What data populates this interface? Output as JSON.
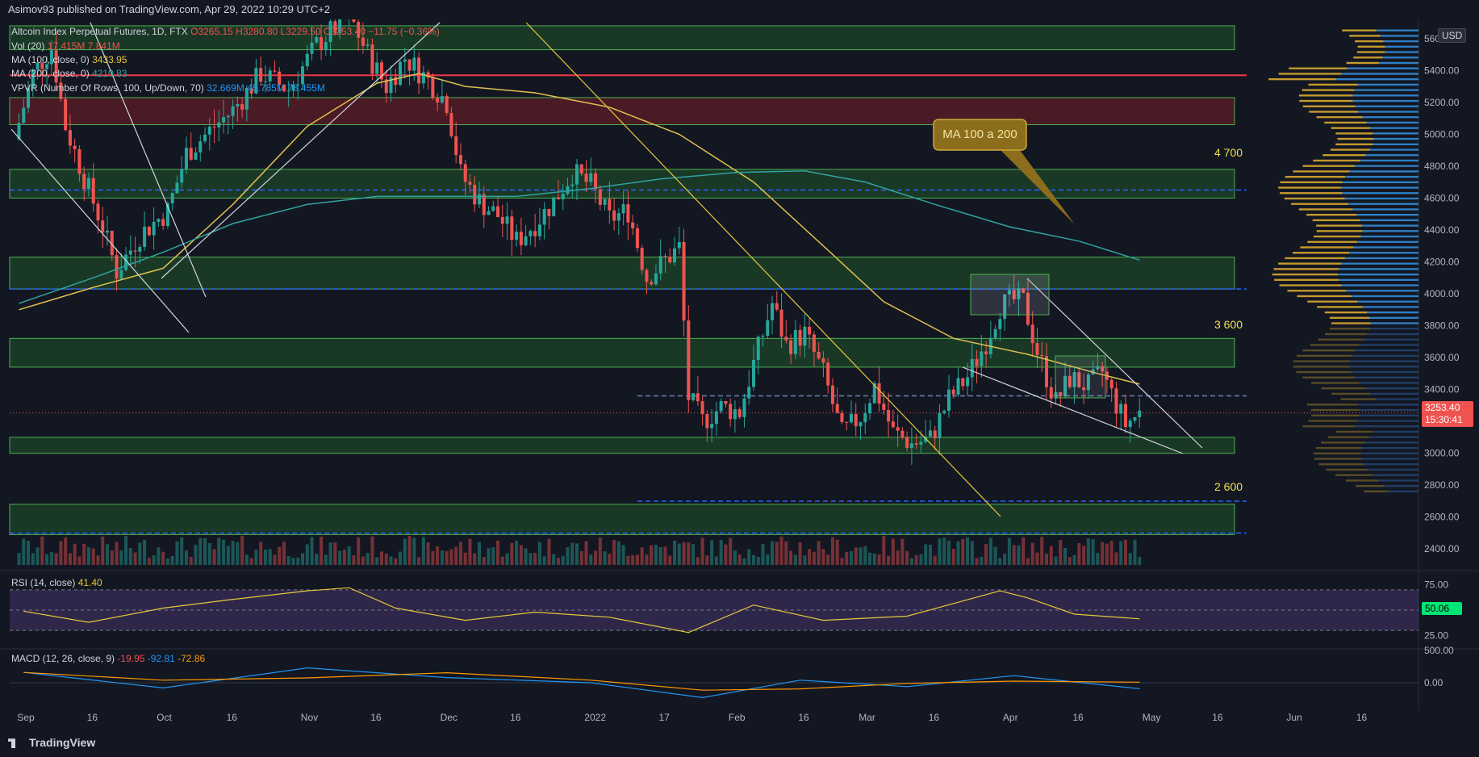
{
  "header": {
    "published": "Asimov93 published on TradingView.com, Apr 29, 2022 10:29 UTC+2"
  },
  "legend": {
    "symbol": "Altcoin Index Perpetual Futures, 1D, FTX",
    "ohlc": "O3265.15  H3280.80  L3229.50  C3253.40  −11.75 (−0.36%)",
    "vol_label": "Vol (20)",
    "vol_values": "17.415M  7.841M",
    "ma100_label": "MA (100, close, 0)",
    "ma100_value": "3433.95",
    "ma200_label": "MA (200, close, 0)",
    "ma200_value": "4210.83",
    "vpvr_label": "VPVR (Number Of Rows, 100, Up/Down, 70)",
    "vpvr_values": "32.669M  45.785M  78.455M",
    "rsi_label": "RSI (14, close)",
    "rsi_value": "41.40",
    "macd_label": "MACD (12, 26, close, 9)",
    "macd_values": [
      "-19.95",
      "-92.81",
      "-72.86"
    ]
  },
  "axis": {
    "currency": "USD",
    "price_ticks": [
      "5600.00",
      "5400.00",
      "5200.00",
      "5000.00",
      "4800.00",
      "4600.00",
      "4400.00",
      "4200.00",
      "4000.00",
      "3800.00",
      "3600.00",
      "3400.00",
      "3200.00",
      "3000.00",
      "2800.00",
      "2600.00",
      "2400.00"
    ],
    "rsi_ticks": [
      "75.00",
      "50.06",
      "25.00"
    ],
    "macd_ticks": [
      "500.00",
      "0.00"
    ],
    "last_price": "3253.40",
    "countdown": "15:30:41",
    "time_labels": [
      "Sep",
      "16",
      "Oct",
      "16",
      "Nov",
      "16",
      "Dec",
      "16",
      "2022",
      "17",
      "Feb",
      "16",
      "Mar",
      "16",
      "Apr",
      "16",
      "May",
      "16",
      "Jun",
      "16"
    ]
  },
  "annotations": {
    "callout": "MA 100 a 200",
    "level_4700": "4 700",
    "level_3600": "3 600",
    "level_2600": "2 600"
  },
  "footer": {
    "brand": "TradingView"
  },
  "colors": {
    "background": "#131722",
    "up": "#26a69a",
    "down": "#ef5350",
    "zone_fill": "#1f5e2a",
    "zone_stroke": "#4caf50",
    "ma100": "#e0c14e",
    "ma200": "#2fa3a0",
    "resistance": "#f23645",
    "dashed_level": "#2962ff",
    "rsi": "#e6c93a",
    "macd": "#2196f3",
    "signal": "#ff9800"
  },
  "chart_data": {
    "type": "candlestick",
    "title": "Altcoin Index Perpetual Futures, 1D, FTX",
    "ylim": [
      2300,
      5700
    ],
    "x_range": [
      "2021-08-29",
      "2022-06-28"
    ],
    "last_close": 3253.4,
    "horizontal_zones": [
      {
        "low": 5530,
        "high": 5680
      },
      {
        "low": 5060,
        "high": 5230,
        "color": "red"
      },
      {
        "low": 4600,
        "high": 4780,
        "label": "4 700"
      },
      {
        "low": 4030,
        "high": 4230
      },
      {
        "low": 3540,
        "high": 3720,
        "label": "3 600"
      },
      {
        "low": 3000,
        "high": 3100
      },
      {
        "low": 2490,
        "high": 2680,
        "label": "2 600"
      }
    ],
    "horizontal_lines": [
      {
        "price": 5370,
        "style": "solid",
        "color": "red"
      },
      {
        "price": 4650,
        "style": "dashed"
      },
      {
        "price": 4030,
        "style": "dashed"
      },
      {
        "price": 3360,
        "style": "dashed"
      },
      {
        "price": 2700,
        "style": "dashed"
      },
      {
        "price": 2500,
        "style": "dashed"
      }
    ],
    "ma100_points": [
      [
        "2021-08-31",
        3900
      ],
      [
        "2021-09-16",
        4040
      ],
      [
        "2021-10-01",
        4160
      ],
      [
        "2021-10-16",
        4560
      ],
      [
        "2021-11-01",
        5050
      ],
      [
        "2021-11-16",
        5320
      ],
      [
        "2021-11-25",
        5380
      ],
      [
        "2021-12-05",
        5300
      ],
      [
        "2021-12-20",
        5260
      ],
      [
        "2022-01-05",
        5170
      ],
      [
        "2022-01-20",
        5000
      ],
      [
        "2022-02-05",
        4700
      ],
      [
        "2022-02-20",
        4300
      ],
      [
        "2022-03-05",
        3950
      ],
      [
        "2022-03-20",
        3720
      ],
      [
        "2022-04-05",
        3620
      ],
      [
        "2022-04-20",
        3500
      ],
      [
        "2022-04-29",
        3434
      ]
    ],
    "ma200_points": [
      [
        "2021-08-31",
        3940
      ],
      [
        "2021-09-16",
        4100
      ],
      [
        "2021-10-01",
        4260
      ],
      [
        "2021-10-16",
        4440
      ],
      [
        "2021-11-01",
        4560
      ],
      [
        "2021-11-16",
        4610
      ],
      [
        "2021-12-01",
        4610
      ],
      [
        "2021-12-16",
        4610
      ],
      [
        "2022-01-01",
        4660
      ],
      [
        "2022-01-16",
        4720
      ],
      [
        "2022-02-01",
        4760
      ],
      [
        "2022-02-16",
        4770
      ],
      [
        "2022-03-01",
        4700
      ],
      [
        "2022-03-16",
        4560
      ],
      [
        "2022-04-01",
        4420
      ],
      [
        "2022-04-16",
        4330
      ],
      [
        "2022-04-29",
        4211
      ]
    ],
    "price_path": [
      [
        "2021-08-30",
        4970
      ],
      [
        "2021-09-03",
        5380
      ],
      [
        "2021-09-07",
        5540
      ],
      [
        "2021-09-10",
        5050
      ],
      [
        "2021-09-14",
        4730
      ],
      [
        "2021-09-18",
        4420
      ],
      [
        "2021-09-21",
        4140
      ],
      [
        "2021-09-26",
        4370
      ],
      [
        "2021-10-02",
        4520
      ],
      [
        "2021-10-06",
        4880
      ],
      [
        "2021-10-12",
        5050
      ],
      [
        "2021-10-16",
        5150
      ],
      [
        "2021-10-22",
        5380
      ],
      [
        "2021-10-28",
        5280
      ],
      [
        "2021-11-03",
        5560
      ],
      [
        "2021-11-10",
        5750
      ],
      [
        "2021-11-14",
        5500
      ],
      [
        "2021-11-18",
        5300
      ],
      [
        "2021-11-22",
        5480
      ],
      [
        "2021-11-27",
        5340
      ],
      [
        "2021-12-01",
        5200
      ],
      [
        "2021-12-04",
        4750
      ],
      [
        "2021-12-08",
        4580
      ],
      [
        "2021-12-12",
        4490
      ],
      [
        "2021-12-16",
        4330
      ],
      [
        "2021-12-20",
        4440
      ],
      [
        "2021-12-24",
        4580
      ],
      [
        "2021-12-28",
        4760
      ],
      [
        "2022-01-01",
        4680
      ],
      [
        "2022-01-05",
        4470
      ],
      [
        "2022-01-09",
        4520
      ],
      [
        "2022-01-13",
        4100
      ],
      [
        "2022-01-17",
        4210
      ],
      [
        "2022-01-20",
        4290
      ],
      [
        "2022-01-22",
        3350
      ],
      [
        "2022-01-25",
        3200
      ],
      [
        "2022-01-29",
        3290
      ],
      [
        "2022-02-02",
        3260
      ],
      [
        "2022-02-05",
        3560
      ],
      [
        "2022-02-09",
        3940
      ],
      [
        "2022-02-12",
        3680
      ],
      [
        "2022-02-16",
        3750
      ],
      [
        "2022-02-20",
        3500
      ],
      [
        "2022-02-24",
        3120
      ],
      [
        "2022-02-28",
        3230
      ],
      [
        "2022-03-03",
        3420
      ],
      [
        "2022-03-07",
        3130
      ],
      [
        "2022-03-11",
        3060
      ],
      [
        "2022-03-15",
        3090
      ],
      [
        "2022-03-19",
        3340
      ],
      [
        "2022-03-23",
        3480
      ],
      [
        "2022-03-27",
        3700
      ],
      [
        "2022-03-30",
        3920
      ],
      [
        "2022-04-02",
        3960
      ],
      [
        "2022-04-04",
        3950
      ],
      [
        "2022-04-07",
        3640
      ],
      [
        "2022-04-11",
        3320
      ],
      [
        "2022-04-14",
        3470
      ],
      [
        "2022-04-18",
        3420
      ],
      [
        "2022-04-21",
        3510
      ],
      [
        "2022-04-23",
        3370
      ],
      [
        "2022-04-26",
        3180
      ],
      [
        "2022-04-29",
        3253
      ]
    ],
    "rsi_points": [
      [
        "2021-09-01",
        49
      ],
      [
        "2021-09-15",
        38
      ],
      [
        "2021-10-01",
        52
      ],
      [
        "2021-10-15",
        60
      ],
      [
        "2021-11-01",
        69
      ],
      [
        "2021-11-10",
        72
      ],
      [
        "2021-11-20",
        52
      ],
      [
        "2021-12-05",
        40
      ],
      [
        "2021-12-20",
        48
      ],
      [
        "2022-01-05",
        43
      ],
      [
        "2022-01-22",
        28
      ],
      [
        "2022-02-05",
        55
      ],
      [
        "2022-02-20",
        40
      ],
      [
        "2022-03-10",
        44
      ],
      [
        "2022-03-30",
        69
      ],
      [
        "2022-04-05",
        62
      ],
      [
        "2022-04-15",
        46
      ],
      [
        "2022-04-29",
        41.4
      ]
    ],
    "macd_points": [
      [
        "2021-09-01",
        160
      ],
      [
        "2021-10-01",
        -80
      ],
      [
        "2021-11-01",
        230
      ],
      [
        "2021-12-01",
        80
      ],
      [
        "2022-01-01",
        0
      ],
      [
        "2022-01-25",
        -230
      ],
      [
        "2022-02-15",
        40
      ],
      [
        "2022-03-10",
        -60
      ],
      [
        "2022-04-02",
        110
      ],
      [
        "2022-04-29",
        -93
      ]
    ]
  }
}
